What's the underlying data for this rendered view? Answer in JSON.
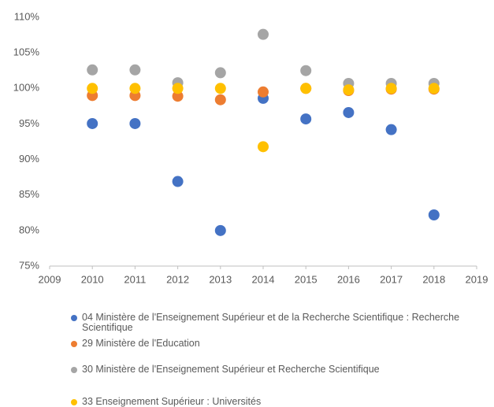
{
  "chart_data": {
    "type": "scatter",
    "x": [
      2010,
      2011,
      2012,
      2013,
      2014,
      2015,
      2016,
      2017,
      2018
    ],
    "series": [
      {
        "name": "04 Ministère de l'Enseignement Supérieur et de la Recherche Scientifique : Recherche Scientifique",
        "color": "#4472c4",
        "values": [
          95.05,
          95.05,
          86.9,
          80.0,
          98.6,
          95.7,
          96.6,
          94.2,
          82.2
        ]
      },
      {
        "name": "29 Ministère de l'Education",
        "color": "#ed7d31",
        "values": [
          99.0,
          99.0,
          98.9,
          98.4,
          99.5,
          100.0,
          99.7,
          99.9,
          99.9
        ]
      },
      {
        "name": "30 Ministère de l'Enseignement Supérieur et Recherche Scientifique",
        "color": "#a5a5a5",
        "values": [
          102.6,
          102.6,
          100.8,
          102.2,
          107.6,
          102.5,
          100.7,
          100.7,
          100.7
        ]
      },
      {
        "name": "33 Enseignement Supérieur : Universités",
        "color": "#ffc000",
        "values": [
          100.0,
          100.0,
          100.0,
          100.0,
          91.8,
          100.0,
          99.8,
          100.0,
          100.0
        ]
      }
    ],
    "xlim": [
      2009,
      2019
    ],
    "xticks": [
      2009,
      2010,
      2011,
      2012,
      2013,
      2014,
      2015,
      2016,
      2017,
      2018,
      2019
    ],
    "ylim": [
      75,
      110
    ],
    "yticks": [
      {
        "value": 75,
        "label": "75%"
      },
      {
        "value": 80,
        "label": "80%"
      },
      {
        "value": 85,
        "label": "85%"
      },
      {
        "value": 90,
        "label": "90%"
      },
      {
        "value": 95,
        "label": "95%"
      },
      {
        "value": 100,
        "label": "100%"
      },
      {
        "value": 105,
        "label": "105%"
      },
      {
        "value": 110,
        "label": "110%"
      }
    ],
    "grid": false,
    "legend": "bottom"
  }
}
